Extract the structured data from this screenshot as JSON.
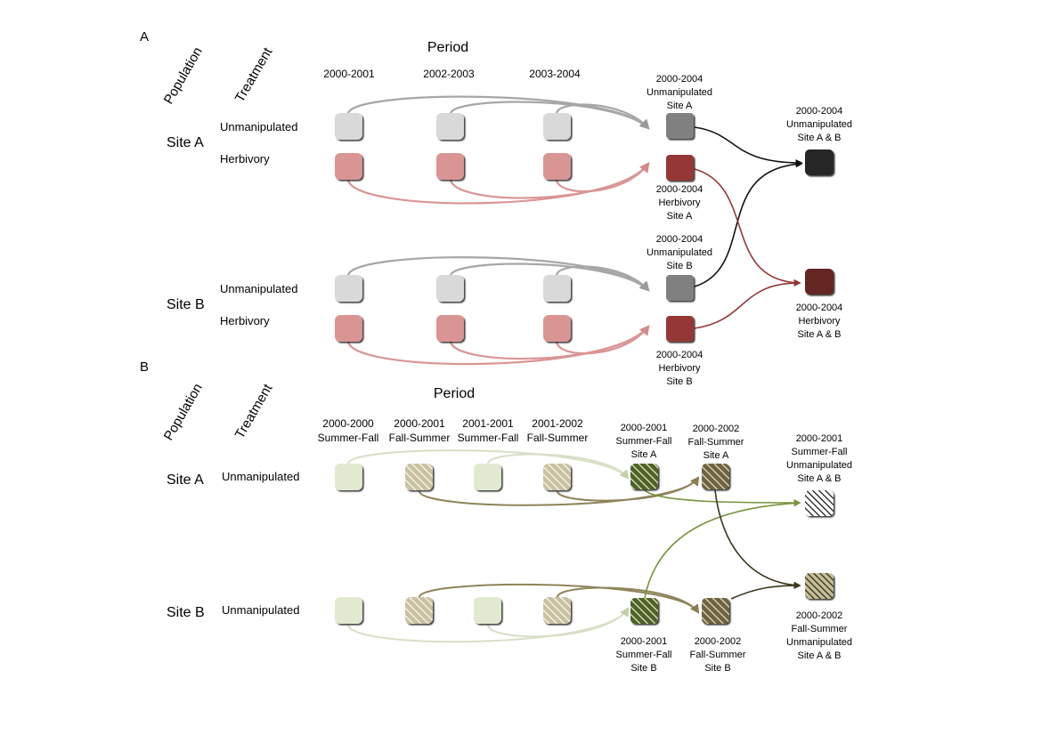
{
  "panel_a": {
    "label": "A",
    "header_population": "Population",
    "header_treatment": "Treatment",
    "header_period": "Period",
    "periods": [
      "2000-2001",
      "2002-2003",
      "2003-2004"
    ],
    "site_a": {
      "name": "Site A",
      "treatments": [
        "Unmanipulated",
        "Herbivory"
      ],
      "unmanip_pooled": [
        "2000-2004",
        "Unmanipulated",
        "Site A"
      ],
      "herb_pooled": [
        "2000-2004",
        "Herbivory",
        "Site A"
      ]
    },
    "site_b": {
      "name": "Site B",
      "treatments": [
        "Unmanipulated",
        "Herbivory"
      ],
      "unmanip_pooled": [
        "2000-2004",
        "Unmanipulated",
        "Site B"
      ],
      "herb_pooled": [
        "2000-2004",
        "Herbivory",
        "Site B"
      ]
    },
    "final_unmanip": [
      "2000-2004",
      "Unmanipulated",
      "Site A & B"
    ],
    "final_herb": [
      "2000-2004",
      "Herbivory",
      "Site A & B"
    ]
  },
  "panel_b": {
    "label": "B",
    "header_population": "Population",
    "header_treatment": "Treatment",
    "header_period": "Period",
    "periods": [
      [
        "2000-2000",
        "Summer-Fall"
      ],
      [
        "2000-2001",
        "Fall-Summer"
      ],
      [
        "2001-2001",
        "Summer-Fall"
      ],
      [
        "2001-2002",
        "Fall-Summer"
      ]
    ],
    "site_a": {
      "name": "Site A",
      "treatment": "Unmanipulated",
      "sf_pooled": [
        "2000-2001",
        "Summer-Fall",
        "Site A"
      ],
      "fs_pooled": [
        "2000-2002",
        "Fall-Summer",
        "Site A"
      ]
    },
    "site_b": {
      "name": "Site B",
      "treatment": "Unmanipulated",
      "sf_pooled": [
        "2000-2001",
        "Summer-Fall",
        "Site B"
      ],
      "fs_pooled": [
        "2000-2002",
        "Fall-Summer",
        "Site B"
      ]
    },
    "final_sf": [
      "2000-2001",
      "Summer-Fall",
      "Unmanipulated",
      "Site A & B"
    ],
    "final_fs": [
      "2000-2002",
      "Fall-Summer",
      "Unmanipulated",
      "Site A & B"
    ]
  },
  "colors": {
    "light_gray": "#d9d9d9",
    "mid_gray": "#808080",
    "dark": "#262626",
    "pink": "#d99594",
    "red": "#953735",
    "dark_red": "#632523",
    "sage": "#d7e4bd",
    "tan": "#c4bd97",
    "olive": "#77933c",
    "brown": "#4a452a"
  }
}
